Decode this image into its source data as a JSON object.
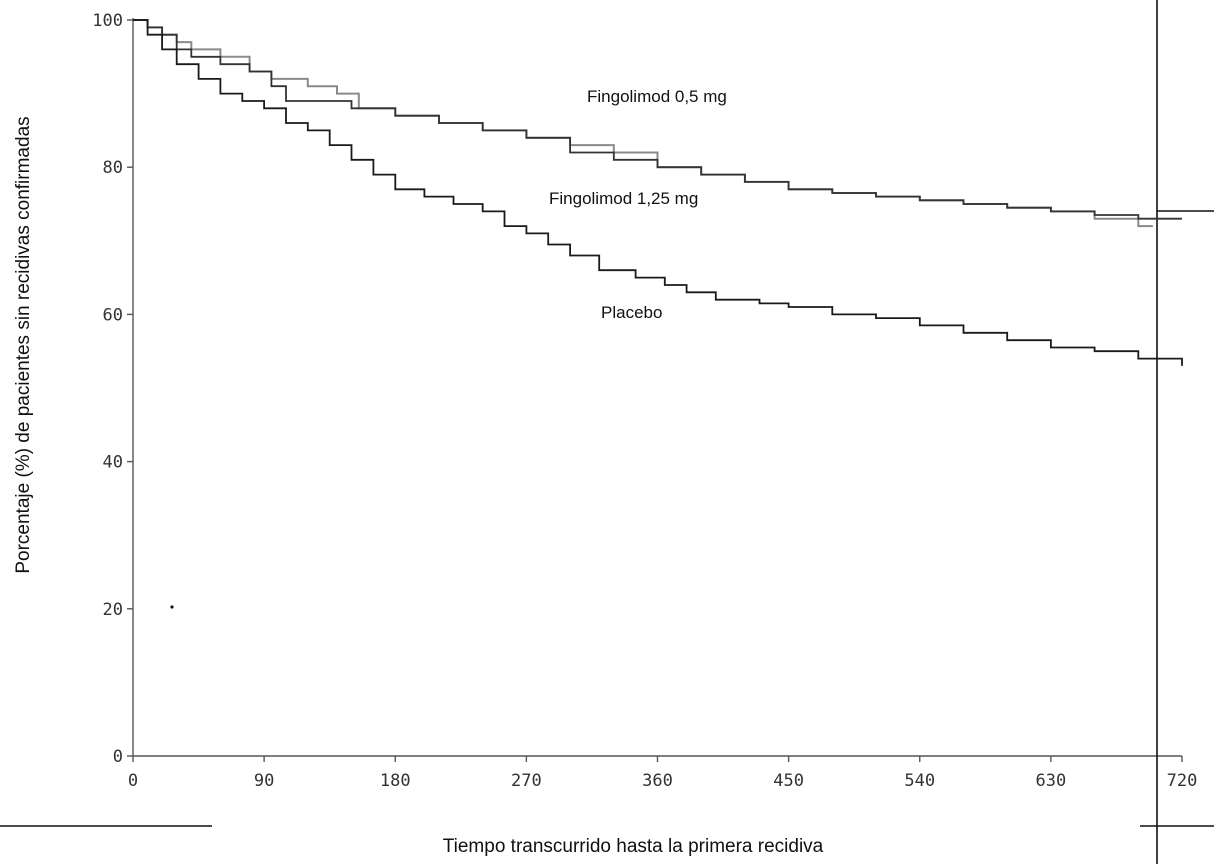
{
  "chart_data": {
    "type": "line",
    "subtype": "kaplan-meier step curve",
    "title": "",
    "xlabel": "Tiempo transcurrido hasta la primera  recidiva",
    "ylabel": "Porcentaje (%) de pacientes sin recidivas confirmadas",
    "xlim": [
      0,
      720
    ],
    "ylim": [
      0,
      100
    ],
    "x_ticks": [
      0,
      90,
      180,
      270,
      360,
      450,
      540,
      630,
      720
    ],
    "x_tick_labels": [
      "0",
      "90",
      "180",
      "270",
      "360",
      "450",
      "540",
      "630",
      "720"
    ],
    "y_ticks": [
      0,
      20,
      40,
      60,
      80,
      100
    ],
    "y_tick_labels": [
      "0",
      "20",
      "40",
      "60",
      "80",
      "100"
    ],
    "grid": false,
    "legend": "none (series labeled directly on plot)",
    "series": [
      {
        "name": "Fingolimod 0,5 mg",
        "color": "#8a8a8a",
        "points": [
          [
            0,
            100
          ],
          [
            10,
            99
          ],
          [
            20,
            98
          ],
          [
            30,
            97
          ],
          [
            40,
            96
          ],
          [
            60,
            95
          ],
          [
            80,
            93
          ],
          [
            95,
            92
          ],
          [
            120,
            91
          ],
          [
            140,
            90
          ],
          [
            155,
            88
          ],
          [
            180,
            87
          ],
          [
            210,
            86
          ],
          [
            240,
            85
          ],
          [
            270,
            84
          ],
          [
            300,
            83
          ],
          [
            330,
            82
          ],
          [
            360,
            80
          ],
          [
            390,
            79
          ],
          [
            420,
            78
          ],
          [
            450,
            77
          ],
          [
            480,
            76.5
          ],
          [
            510,
            76
          ],
          [
            540,
            75.5
          ],
          [
            570,
            75
          ],
          [
            600,
            74.5
          ],
          [
            630,
            74
          ],
          [
            660,
            73
          ],
          [
            690,
            72
          ],
          [
            700,
            72
          ]
        ]
      },
      {
        "name": "Fingolimod 1,25 mg",
        "color": "#333333",
        "points": [
          [
            0,
            100
          ],
          [
            10,
            99
          ],
          [
            20,
            98
          ],
          [
            30,
            96
          ],
          [
            40,
            95
          ],
          [
            60,
            94
          ],
          [
            80,
            93
          ],
          [
            95,
            91
          ],
          [
            105,
            89
          ],
          [
            120,
            89
          ],
          [
            150,
            88
          ],
          [
            180,
            87
          ],
          [
            210,
            86
          ],
          [
            240,
            85
          ],
          [
            270,
            84
          ],
          [
            300,
            82
          ],
          [
            330,
            81
          ],
          [
            360,
            80
          ],
          [
            390,
            79
          ],
          [
            420,
            78
          ],
          [
            450,
            77
          ],
          [
            480,
            76.5
          ],
          [
            510,
            76
          ],
          [
            540,
            75.5
          ],
          [
            570,
            75
          ],
          [
            600,
            74.5
          ],
          [
            630,
            74
          ],
          [
            660,
            73.5
          ],
          [
            690,
            73
          ],
          [
            720,
            73
          ]
        ]
      },
      {
        "name": "Placebo",
        "color": "#1a1a1a",
        "points": [
          [
            0,
            100
          ],
          [
            10,
            98
          ],
          [
            20,
            96
          ],
          [
            30,
            94
          ],
          [
            45,
            92
          ],
          [
            60,
            90
          ],
          [
            75,
            89
          ],
          [
            90,
            88
          ],
          [
            105,
            86
          ],
          [
            120,
            85
          ],
          [
            135,
            83
          ],
          [
            150,
            81
          ],
          [
            165,
            79
          ],
          [
            180,
            77
          ],
          [
            200,
            76
          ],
          [
            220,
            75
          ],
          [
            240,
            74
          ],
          [
            255,
            72
          ],
          [
            270,
            71
          ],
          [
            285,
            69.5
          ],
          [
            300,
            68
          ],
          [
            320,
            66
          ],
          [
            345,
            65
          ],
          [
            365,
            64
          ],
          [
            380,
            63
          ],
          [
            400,
            62
          ],
          [
            430,
            61.5
          ],
          [
            450,
            61
          ],
          [
            480,
            60
          ],
          [
            510,
            59.5
          ],
          [
            540,
            58.5
          ],
          [
            570,
            57.5
          ],
          [
            600,
            56.5
          ],
          [
            630,
            55.5
          ],
          [
            660,
            55
          ],
          [
            690,
            54
          ],
          [
            720,
            53
          ]
        ]
      }
    ]
  }
}
